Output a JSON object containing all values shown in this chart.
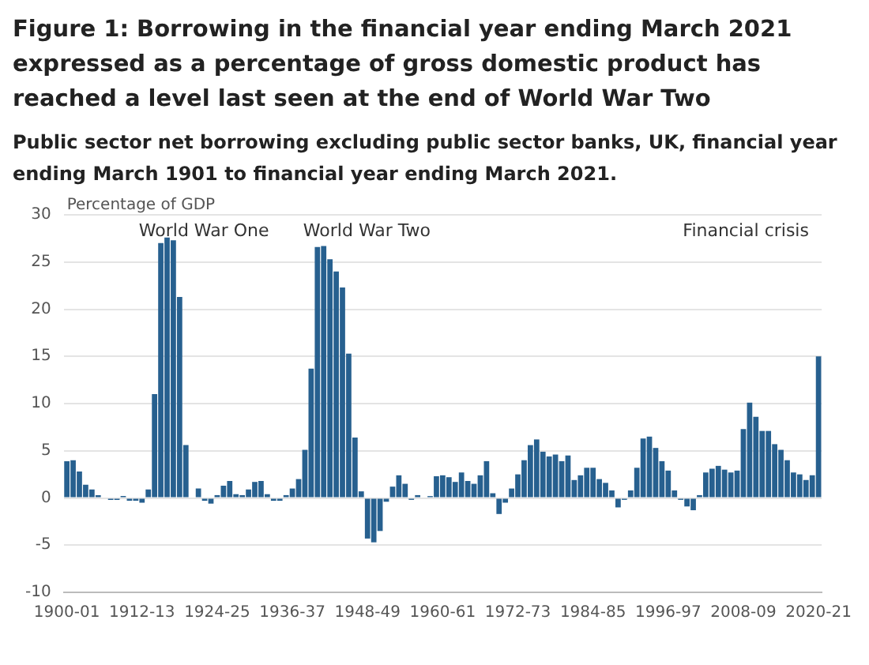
{
  "chart_data": {
    "type": "bar",
    "title": "Figure 1: Borrowing in the financial year ending March 2021 expressed as a percentage of gross domestic product has reached a level last seen at the end of World War Two",
    "subtitle": "Public sector net borrowing excluding public sector banks, UK, financial year ending March 1901 to financial year ending March 2021.",
    "ylabel": "Percentage of GDP",
    "categories": [
      "1900-01",
      null,
      null,
      null,
      null,
      null,
      null,
      null,
      null,
      null,
      null,
      null,
      "1912-13",
      null,
      null,
      null,
      null,
      null,
      null,
      null,
      null,
      null,
      null,
      null,
      "1924-25",
      null,
      null,
      null,
      null,
      null,
      null,
      null,
      null,
      null,
      null,
      null,
      "1936-37",
      null,
      null,
      null,
      null,
      null,
      null,
      null,
      null,
      null,
      null,
      null,
      "1948-49",
      null,
      null,
      null,
      null,
      null,
      null,
      null,
      null,
      null,
      null,
      null,
      "1960-61",
      null,
      null,
      null,
      null,
      null,
      null,
      null,
      null,
      null,
      null,
      null,
      "1972-73",
      null,
      null,
      null,
      null,
      null,
      null,
      null,
      null,
      null,
      null,
      null,
      "1984-85",
      null,
      null,
      null,
      null,
      null,
      null,
      null,
      null,
      null,
      null,
      null,
      "1996-97",
      null,
      null,
      null,
      null,
      null,
      null,
      null,
      null,
      null,
      null,
      null,
      "2008-09",
      null,
      null,
      null,
      null,
      null,
      null,
      null,
      null,
      null,
      null,
      null,
      "2020-21"
    ],
    "values": [
      3.9,
      4.0,
      2.8,
      1.4,
      0.9,
      0.3,
      0,
      -0.2,
      -0.2,
      0.2,
      -0.3,
      -0.3,
      -0.5,
      0.9,
      11.0,
      27.0,
      27.6,
      27.3,
      21.3,
      5.6,
      0,
      1.0,
      -0.3,
      -0.6,
      0.3,
      1.3,
      1.8,
      0.4,
      0.3,
      0.9,
      1.7,
      1.8,
      0.4,
      -0.3,
      -0.3,
      0.3,
      1.0,
      2.0,
      5.1,
      13.7,
      26.6,
      26.7,
      25.3,
      24.0,
      22.3,
      15.3,
      6.4,
      0.7,
      -4.3,
      -4.7,
      -3.5,
      -0.4,
      1.2,
      2.4,
      1.5,
      -0.2,
      0.3,
      0,
      0.2,
      2.3,
      2.4,
      2.2,
      1.7,
      2.7,
      1.8,
      1.5,
      2.4,
      3.9,
      0.5,
      -1.7,
      -0.5,
      1.0,
      2.5,
      4.0,
      5.6,
      6.2,
      4.9,
      4.4,
      4.6,
      3.9,
      4.5,
      1.9,
      2.4,
      3.2,
      3.2,
      2.0,
      1.6,
      0.8,
      -1.0,
      -0.2,
      0.8,
      3.2,
      6.3,
      6.5,
      5.3,
      3.9,
      2.9,
      0.8,
      -0.2,
      -0.9,
      -1.3,
      0.3,
      2.7,
      3.1,
      3.4,
      3.0,
      2.7,
      2.9,
      7.3,
      10.1,
      8.6,
      7.1,
      7.1,
      5.7,
      5.1,
      4.0,
      2.7,
      2.5,
      1.9,
      2.4,
      15.0
    ],
    "color": "#27608f",
    "ylim": [
      -10,
      30
    ],
    "yticks": [
      -10,
      -5,
      0,
      5,
      10,
      15,
      20,
      25,
      30
    ],
    "grid": "y",
    "annotations": [
      "World War One",
      "World War Two",
      "Financial crisis"
    ]
  }
}
